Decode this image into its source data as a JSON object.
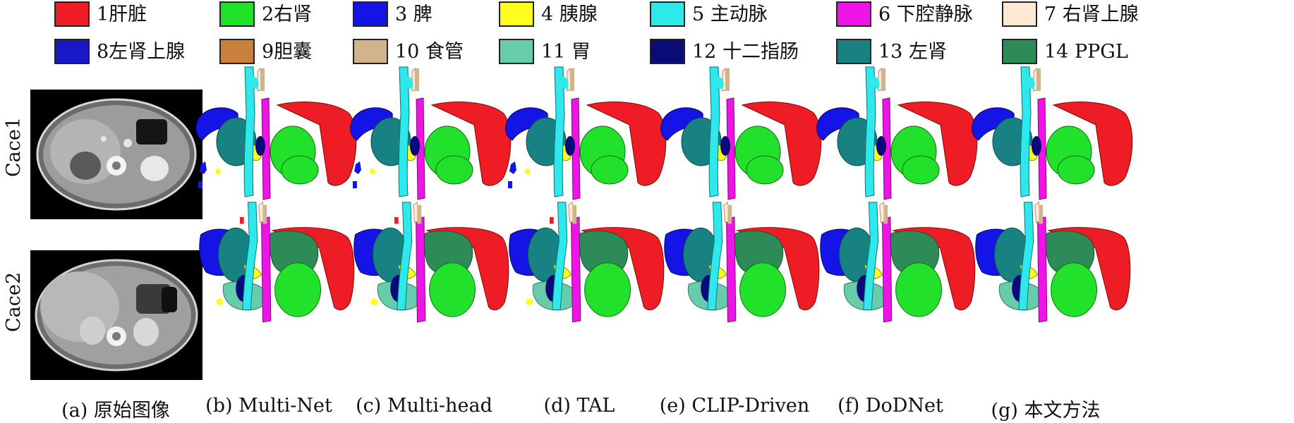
{
  "legend": [
    {
      "label": "1肝脏",
      "color": "#ee1c24"
    },
    {
      "label": "2右肾",
      "color": "#22e12a"
    },
    {
      "label": "3 脾",
      "color": "#1414e6"
    },
    {
      "label": "4 胰腺",
      "color": "#ffff1e"
    },
    {
      "label": "5 主动脉",
      "color": "#2ee8ec"
    },
    {
      "label": "6 下腔静脉",
      "color": "#ee14e6"
    },
    {
      "label": "7 右肾上腺",
      "color": "#fde9d4"
    },
    {
      "label": "8左肾上腺",
      "color": "#1818c8"
    },
    {
      "label": "9胆囊",
      "color": "#c8803c"
    },
    {
      "label": "10 食管",
      "color": "#d2b48c"
    },
    {
      "label": "11 胃",
      "color": "#66ccaa"
    },
    {
      "label": "12 十二指肠",
      "color": "#0a0a78"
    },
    {
      "label": "13 左肾",
      "color": "#188282"
    },
    {
      "label": "14 PPGL",
      "color": "#2e8b57"
    }
  ],
  "rows": [
    {
      "label": "Cace1"
    },
    {
      "label": "Cace2"
    }
  ],
  "captions": [
    "(a) 原始图像",
    "(b) Multi-Net",
    "(c) Multi-head",
    "(d) TAL",
    "(e) CLIP-Driven",
    "(f) DoDNet",
    "(g) 本文方法"
  ]
}
